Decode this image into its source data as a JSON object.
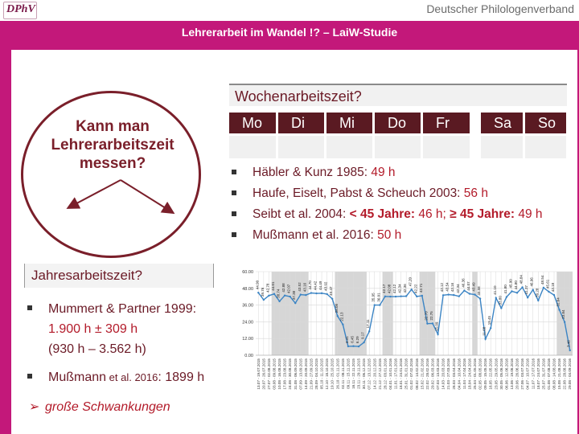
{
  "header": {
    "logo_text": "DPhV",
    "org": "Deutscher Philologenverband",
    "slide_title": "Lehrerarbeit im Wandel !? – LaiW-Studie"
  },
  "circle": {
    "question_lines": [
      "Kann man",
      "Lehrerarbeitszeit",
      "messen?"
    ]
  },
  "week": {
    "title": "Wochenarbeitszeit?",
    "days": [
      "Mo",
      "Di",
      "Mi",
      "Do",
      "Fr",
      "Sa",
      "So"
    ],
    "items": [
      {
        "a": "Häbler & Kunz 1985:  ",
        "b": "49 h"
      },
      {
        "a": "Haufe, Eiselt, Pabst & Scheuch 2003: ",
        "b": "56 h"
      },
      {
        "a": "Seibt et al. 2004: ",
        "c": "< 45 Jahre:",
        "d": " 46 h; ",
        "e": "≥ 45 Jahre:",
        "f": " 49 h"
      },
      {
        "a": "Mußmann et al. 2016: ",
        "b": "50 h"
      }
    ]
  },
  "year": {
    "title": "Jahresarbeitszeit?",
    "item1_label": "Mummert & Partner 1999:",
    "item1_line2": "1.900 h ± 309 h",
    "item1_line3": "(930 h – 3.562 h)",
    "item2_label": "Mußmann",
    "item2_mid": " et al. 2016",
    "item2_value": ": 1899 h",
    "note_symbol": "➢",
    "note": "große Schwankungen"
  },
  "chart_data": {
    "type": "line",
    "y_ticks": [
      "60.00",
      "48.00",
      "36.00",
      "24.00",
      "12.00",
      "0.00"
    ],
    "ylim": [
      0,
      60
    ],
    "grid": true,
    "x": [
      "13.07.2015",
      "20.07.2015",
      "27.07.2015",
      "03.08.2015",
      "10.08.2015",
      "17.08.2015",
      "24.08.2015",
      "31.08.2015",
      "07.09.2015",
      "14.09.2015",
      "21.09.2015",
      "28.09.2015",
      "05.10.2015",
      "12.10.2015",
      "19.10.2015",
      "26.10.2015",
      "02.11.2015",
      "09.11.2015",
      "16.11.2015",
      "23.11.2015",
      "30.11.2015",
      "07.12.2015",
      "14.12.2015",
      "21.12.2015",
      "28.12.2015",
      "04.01.2016",
      "11.01.2016",
      "18.01.2016",
      "25.01.2016",
      "01.02.2016",
      "08.02.2016",
      "15.02.2016",
      "22.02.2016",
      "29.02.2016",
      "07.03.2016",
      "14.03.2016",
      "21.03.2016",
      "28.03.2016",
      "04.04.2016",
      "11.04.2016",
      "18.04.2016",
      "25.04.2016",
      "02.05.2016",
      "09.05.2016",
      "16.05.2016",
      "23.05.2016",
      "30.05.2016",
      "06.06.2016",
      "13.06.2016",
      "20.06.2016",
      "27.06.2016",
      "04.07.2016",
      "11.07.2016",
      "18.07.2016",
      "25.07.2016",
      "01.08.2016",
      "08.08.2016",
      "15.08.2016",
      "22.08.2016",
      "29.08.2016"
    ],
    "values": [
      44.9,
      39.8,
      42.8,
      44.0,
      38.7,
      42.9,
      42.1,
      37.4,
      43.5,
      43.2,
      44.7,
      44.4,
      44.5,
      43.9,
      40.5,
      28.1,
      22.1,
      6.4,
      6.5,
      6.3,
      9.2,
      17.1,
      36.0,
      36.0,
      42.2,
      42.1,
      42.1,
      42.3,
      42.4,
      47.2,
      42.2,
      42.7,
      22.7,
      22.8,
      15.1,
      43.1,
      43.5,
      43.2,
      42.3,
      46.4,
      44.1,
      43.5,
      40.6,
      11.7,
      19.5,
      41.1,
      33.8,
      41.8,
      45.9,
      44.8,
      48.8,
      41.4,
      47.0,
      39.3,
      48.5,
      45.6,
      43.2,
      32.6,
      23.8,
      3.5
    ],
    "data_labels": [
      "44.90",
      "39.76",
      "42.78",
      "44.01",
      "38.74",
      "42.88",
      "42.07",
      "37.38",
      "43.52",
      "43.16",
      "44.70",
      "44.42",
      "44.49",
      "43.92",
      "40.47",
      "28.08",
      "22.13",
      "6.41",
      "6.45",
      "6.29",
      "9.17",
      "17.11",
      "35.95",
      "36.01",
      "42.17",
      "42.08",
      "42.12",
      "42.34",
      "42.36",
      "47.20",
      "42.22",
      "42.71",
      "22.70",
      "22.75",
      "15.09",
      "43.12",
      "43.54",
      "43.16",
      "42.34",
      "46.36",
      "44.07",
      "43.49",
      "40.58",
      "11.68",
      "19.45",
      "41.10",
      "33.80",
      "41.80",
      "45.90",
      "44.80",
      "48.84",
      "41.37",
      "46.96",
      "39.28",
      "48.54",
      "45.61",
      "43.18",
      "32.64",
      "23.84",
      "3.46"
    ],
    "highlight_bands": [
      [
        3,
        9
      ],
      [
        15,
        20
      ],
      [
        24,
        25
      ],
      [
        31,
        33
      ],
      [
        41,
        41
      ],
      [
        57,
        59
      ]
    ],
    "colors": {
      "line": "#3b84c4",
      "band": "#d6d6d6",
      "grid": "#d9d9d9"
    }
  }
}
